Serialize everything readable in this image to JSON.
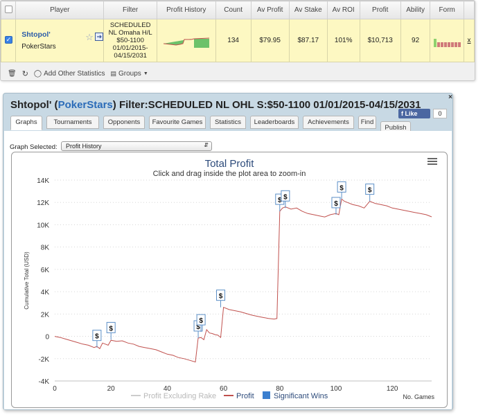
{
  "table": {
    "headers": [
      "",
      "Player",
      "Filter",
      "Profit History",
      "Count",
      "Av Profit",
      "Av Stake",
      "Av ROI",
      "Profit",
      "Ability",
      "Form",
      ""
    ],
    "row": {
      "player_name": "Shtopol'",
      "player_site": "PokerStars",
      "filter_lines": [
        "SCHEDULED",
        "NL Omaha H/L",
        "$50-1100",
        "01/01/2015-",
        "04/15/2031"
      ],
      "count": "134",
      "av_profit": "$79.95",
      "av_stake": "$87.17",
      "av_roi": "101%",
      "profit": "$10,713",
      "ability": "92",
      "remove": "x"
    },
    "form_bars": [
      {
        "h": 0.55,
        "color": "#8fd16e"
      },
      {
        "h": 0.3,
        "color": "#d07a7a"
      },
      {
        "h": 0.3,
        "color": "#d07a7a"
      },
      {
        "h": 0.3,
        "color": "#d07a7a"
      },
      {
        "h": 0.3,
        "color": "#d07a7a"
      },
      {
        "h": 0.3,
        "color": "#d07a7a"
      },
      {
        "h": 0.3,
        "color": "#d07a7a"
      },
      {
        "h": 0.3,
        "color": "#d07a7a"
      }
    ]
  },
  "toolbar": {
    "add_other_statistics": "Add Other Statistics",
    "groups": "Groups"
  },
  "window": {
    "title_prefix": "Shtopol' (",
    "title_site": "PokerStars",
    "title_suffix": ") Filter:SCHEDULED NL OHL S:$50-1100 01/01/2015-04/15/2031",
    "close": "×",
    "fb_like": "Like",
    "fb_count": "0",
    "tabs": [
      "Graphs",
      "Tournaments",
      "Opponents",
      "Favourite Games",
      "Statistics",
      "Leaderboards",
      "Achievements",
      "Find",
      "Publish"
    ],
    "active_tab": "Graphs",
    "graph_select_label": "Graph Selected:",
    "graph_select_value": "Profit History"
  },
  "chart_data": {
    "type": "line",
    "title": "Total Profit",
    "subtitle": "Click and drag inside the plot area to zoom-in",
    "ylabel": "Cumulative Total (USD)",
    "xlabel": "No. Games",
    "xlim": [
      0,
      134
    ],
    "ylim": [
      -4000,
      14000
    ],
    "x_ticks": [
      0,
      20,
      40,
      60,
      80,
      100,
      120
    ],
    "y_ticks": [
      -4000,
      -2000,
      0,
      2000,
      4000,
      6000,
      8000,
      10000,
      12000,
      14000
    ],
    "y_tick_labels": [
      "-4K",
      "-2K",
      "0",
      "2K",
      "4K",
      "6K",
      "8K",
      "10K",
      "12K",
      "14K"
    ],
    "grid": true,
    "series": [
      {
        "name": "Profit Excluding Rake",
        "color": "#cccccc",
        "values": []
      },
      {
        "name": "Profit",
        "color": "#c0504d",
        "x": [
          0,
          2,
          4,
          6,
          8,
          10,
          12,
          14,
          15,
          16,
          17,
          18,
          19,
          20,
          22,
          24,
          26,
          28,
          30,
          32,
          34,
          36,
          38,
          40,
          42,
          44,
          46,
          48,
          50,
          51,
          52,
          53,
          54,
          55,
          56,
          57,
          58,
          59,
          60,
          62,
          64,
          66,
          68,
          70,
          72,
          74,
          76,
          78,
          79,
          80,
          81,
          82,
          84,
          86,
          88,
          90,
          92,
          94,
          96,
          98,
          100,
          101,
          102,
          103,
          104,
          106,
          108,
          110,
          112,
          114,
          116,
          118,
          120,
          122,
          124,
          126,
          128,
          130,
          132,
          134
        ],
        "y": [
          0,
          -100,
          -250,
          -400,
          -550,
          -700,
          -800,
          -1000,
          -900,
          -1100,
          -600,
          -700,
          -800,
          -350,
          -450,
          -400,
          -600,
          -700,
          -900,
          -1000,
          -1100,
          -1200,
          -1400,
          -1600,
          -1700,
          -1900,
          -2000,
          -2150,
          -2300,
          -150,
          -100,
          -300,
          600,
          300,
          250,
          150,
          100,
          -100,
          2600,
          2400,
          2300,
          2200,
          2050,
          1900,
          1800,
          1700,
          1600,
          1550,
          1600,
          11200,
          11500,
          11600,
          11400,
          11500,
          11200,
          11000,
          10900,
          10800,
          10700,
          10900,
          11000,
          10900,
          12300,
          12100,
          12000,
          11800,
          11700,
          11500,
          12100,
          11900,
          11800,
          11700,
          11500,
          11400,
          11300,
          11200,
          11100,
          11000,
          10900,
          10713
        ]
      }
    ],
    "significant_wins_label": "Significant Wins",
    "significant_wins": [
      {
        "x": 15,
        "y": -1000
      },
      {
        "x": 20,
        "y": -300
      },
      {
        "x": 51,
        "y": -150
      },
      {
        "x": 52,
        "y": 400
      },
      {
        "x": 59,
        "y": 2600
      },
      {
        "x": 80,
        "y": 11200
      },
      {
        "x": 82,
        "y": 11500
      },
      {
        "x": 100,
        "y": 10900
      },
      {
        "x": 102,
        "y": 12300
      },
      {
        "x": 112,
        "y": 12100
      }
    ],
    "legend_items": [
      "Profit Excluding Rake",
      "Profit",
      "Significant Wins"
    ],
    "legend_placement": "bottom-center"
  }
}
